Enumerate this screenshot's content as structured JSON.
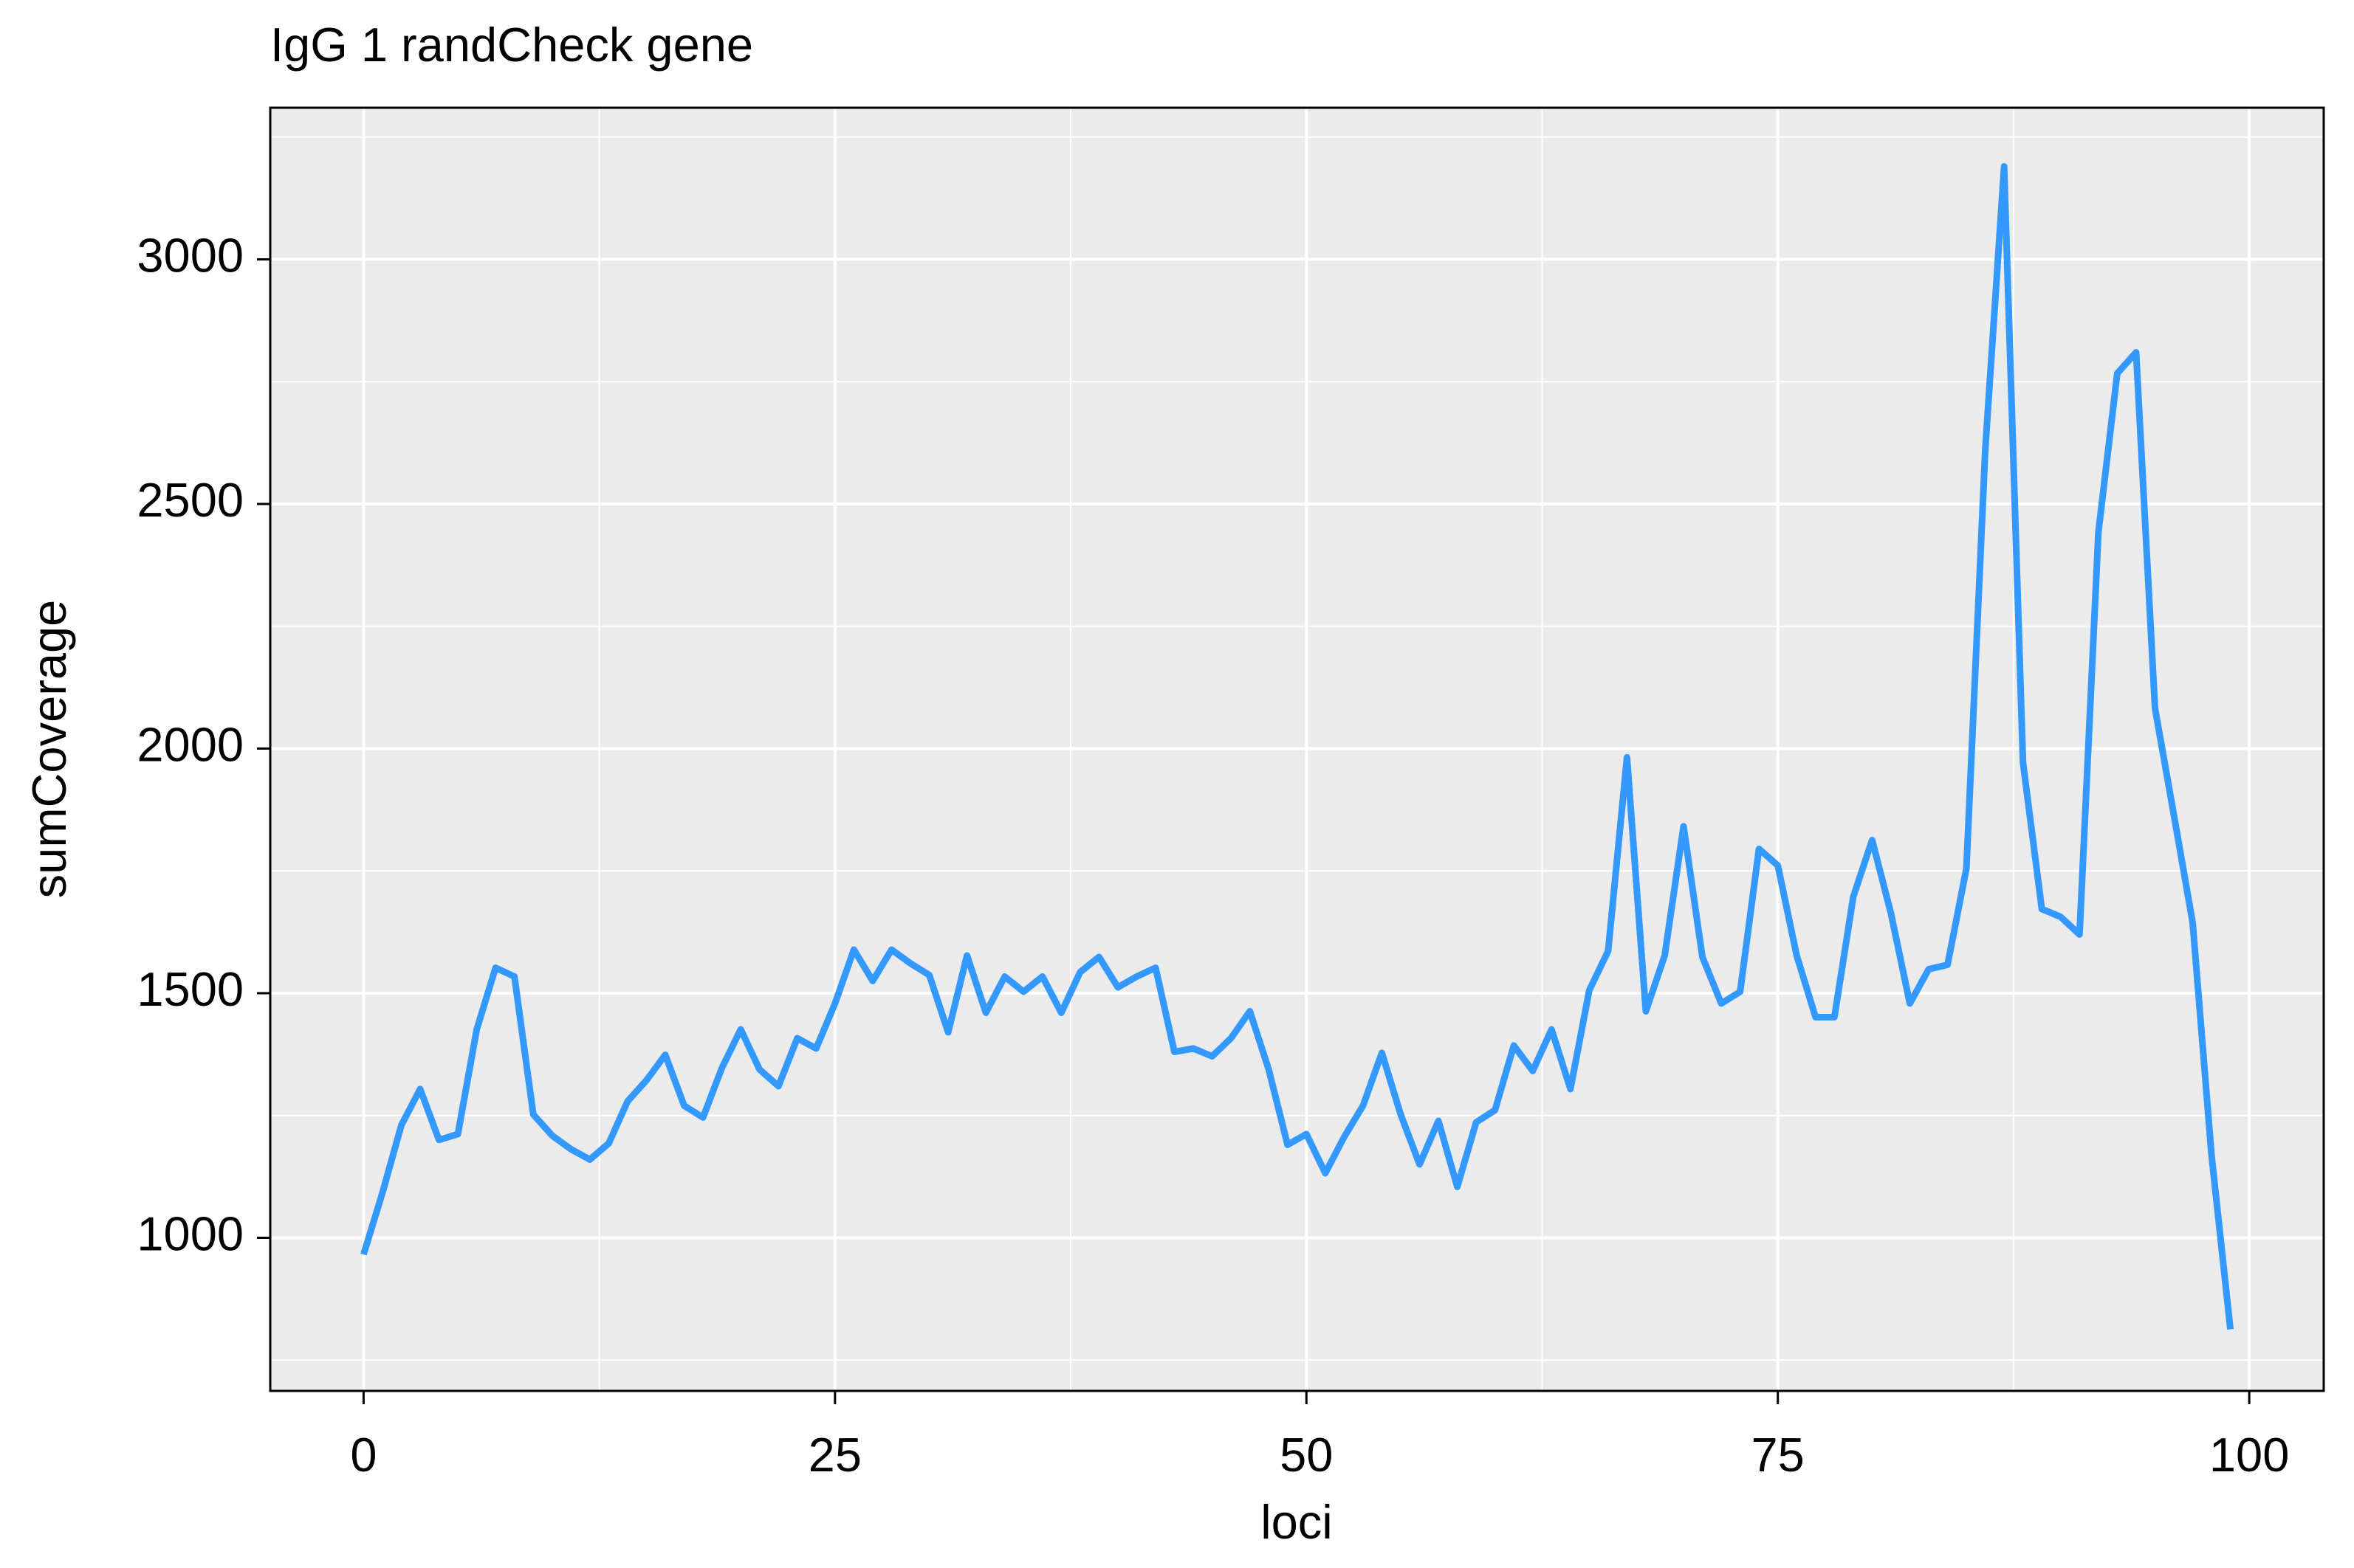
{
  "chart_data": {
    "type": "line",
    "title": "IgG 1 randCheck gene",
    "x_label": "loci",
    "y_label": "sumCoverage",
    "x": [
      0,
      1,
      2,
      3,
      4,
      5,
      6,
      7,
      8,
      9,
      10,
      11,
      12,
      13,
      14,
      15,
      16,
      17,
      18,
      19,
      20,
      21,
      22,
      23,
      24,
      25,
      26,
      27,
      28,
      29,
      30,
      31,
      32,
      33,
      34,
      35,
      36,
      37,
      38,
      39,
      40,
      41,
      42,
      43,
      44,
      45,
      46,
      47,
      48,
      49,
      50,
      51,
      52,
      53,
      54,
      55,
      56,
      57,
      58,
      59,
      60,
      61,
      62,
      63,
      64,
      65,
      66,
      67,
      68,
      69,
      70,
      71,
      72,
      73,
      74,
      75,
      76,
      77,
      78,
      79,
      80,
      81,
      82,
      83,
      84,
      85,
      86,
      87,
      88,
      89,
      90,
      91,
      92,
      93,
      94,
      95,
      96,
      97,
      98,
      99
    ],
    "series": [
      {
        "name": "sumCoverage",
        "color": "#3399ff",
        "values": [
          966,
          1092,
          1230,
          1304,
          1200,
          1212,
          1426,
          1552,
          1534,
          1252,
          1209,
          1181,
          1160,
          1193,
          1279,
          1322,
          1374,
          1270,
          1246,
          1347,
          1426,
          1344,
          1310,
          1408,
          1387,
          1479,
          1589,
          1525,
          1589,
          1561,
          1537,
          1420,
          1577,
          1460,
          1534,
          1503,
          1534,
          1460,
          1543,
          1574,
          1512,
          1534,
          1552,
          1380,
          1387,
          1371,
          1408,
          1463,
          1344,
          1190,
          1212,
          1132,
          1206,
          1270,
          1378,
          1252,
          1150,
          1239,
          1104,
          1236,
          1261,
          1393,
          1341,
          1426,
          1304,
          1506,
          1586,
          1982,
          1463,
          1577,
          1841,
          1574,
          1479,
          1503,
          1795,
          1761,
          1577,
          1451,
          1451,
          1697,
          1813,
          1663,
          1479,
          1549,
          1558,
          1755,
          2611,
          3190,
          1972,
          1672,
          1656,
          1620,
          2442,
          2767,
          2810,
          2083,
          1865,
          1644,
          1169,
          813
        ]
      }
    ],
    "xlim": [
      -4.95,
      103.95
    ],
    "ylim": [
      687,
      3310
    ],
    "xticks": [
      0,
      25,
      50,
      75,
      100
    ],
    "yticks": [
      1000,
      1500,
      2000,
      2500,
      3000
    ],
    "grid": true,
    "minor_grid": true
  }
}
